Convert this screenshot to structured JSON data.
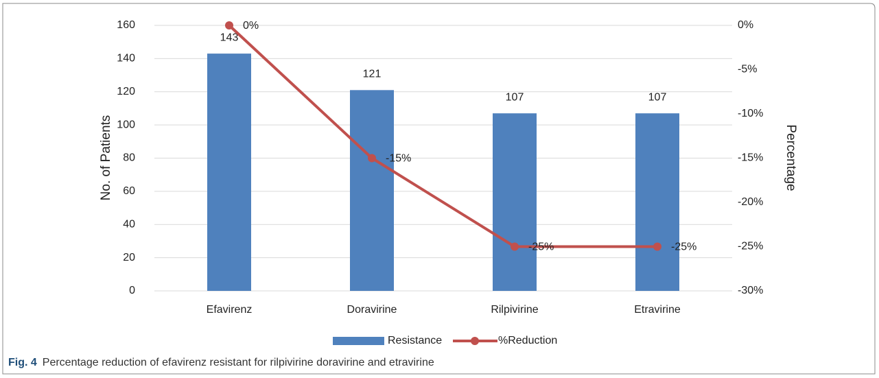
{
  "chart_data": {
    "type": "bar",
    "y_label": "No. of Patients",
    "y2_label": "Percentage",
    "categories": [
      "Efavirenz",
      "Doravirine",
      "Rilpivirine",
      "Etravirine"
    ],
    "series": [
      {
        "name": "Resistance",
        "type": "bar",
        "color": "#4f81bd",
        "values": [
          143,
          121,
          107,
          107
        ]
      },
      {
        "name": "%Reduction",
        "type": "line",
        "axis": "y2",
        "color": "#c0504d",
        "values": [
          0,
          -15,
          -25,
          -25
        ],
        "value_labels": [
          "0%",
          "-15%",
          "-25%",
          "-25%"
        ]
      }
    ],
    "ylim": [
      0,
      160
    ],
    "yticks": [
      0,
      20,
      40,
      60,
      80,
      100,
      120,
      140,
      160
    ],
    "y2lim": [
      -30,
      0
    ],
    "y2ticks": [
      {
        "value": 0,
        "label": "0%"
      },
      {
        "value": -5,
        "label": "-5%"
      },
      {
        "value": -10,
        "label": "-10%"
      },
      {
        "value": -15,
        "label": "-15%"
      },
      {
        "value": -20,
        "label": "-20%"
      },
      {
        "value": -25,
        "label": "-25%"
      },
      {
        "value": -30,
        "label": "-30%"
      }
    ],
    "grid": true,
    "legend": "bottom"
  },
  "caption": {
    "label": "Fig. 4",
    "text": "Percentage reduction of efavirenz resistant for rilpivirine doravirine and etravirine"
  }
}
